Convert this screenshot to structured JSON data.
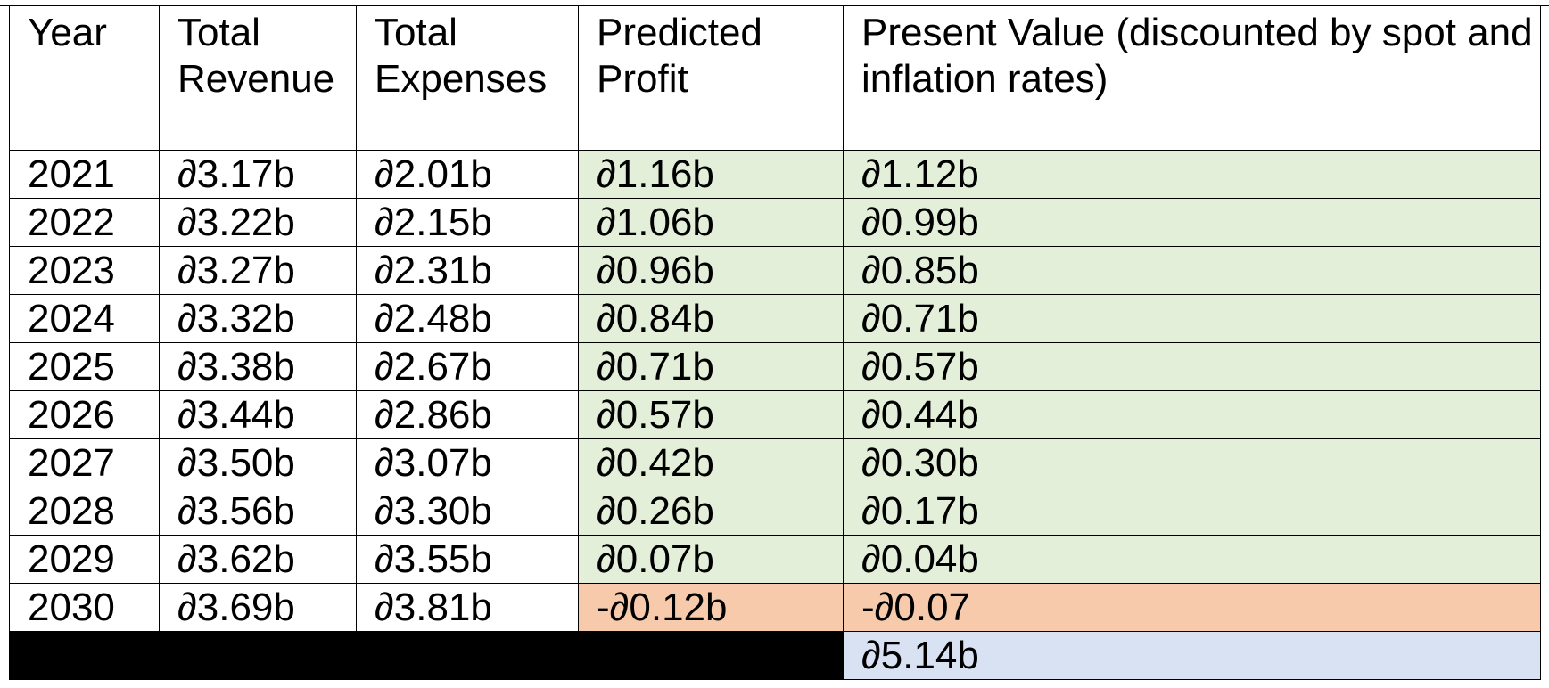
{
  "table": {
    "headers": {
      "year": "Year",
      "revenue": "Total Revenue",
      "expenses": "Total Expenses",
      "profit": "Predicted Profit",
      "present_value": "Present Value (discounted by spot and inflation rates)"
    },
    "rows": [
      {
        "year": "2021",
        "revenue": "∂3.17b",
        "expenses": "∂2.01b",
        "profit": "∂1.16b",
        "present_value": "∂1.12b"
      },
      {
        "year": "2022",
        "revenue": "∂3.22b",
        "expenses": "∂2.15b",
        "profit": "∂1.06b",
        "present_value": "∂0.99b"
      },
      {
        "year": "2023",
        "revenue": "∂3.27b",
        "expenses": "∂2.31b",
        "profit": "∂0.96b",
        "present_value": "∂0.85b"
      },
      {
        "year": "2024",
        "revenue": "∂3.32b",
        "expenses": "∂2.48b",
        "profit": "∂0.84b",
        "present_value": "∂0.71b"
      },
      {
        "year": "2025",
        "revenue": "∂3.38b",
        "expenses": "∂2.67b",
        "profit": "∂0.71b",
        "present_value": "∂0.57b"
      },
      {
        "year": "2026",
        "revenue": "∂3.44b",
        "expenses": "∂2.86b",
        "profit": "∂0.57b",
        "present_value": "∂0.44b"
      },
      {
        "year": "2027",
        "revenue": "∂3.50b",
        "expenses": "∂3.07b",
        "profit": "∂0.42b",
        "present_value": "∂0.30b"
      },
      {
        "year": "2028",
        "revenue": "∂3.56b",
        "expenses": "∂3.30b",
        "profit": "∂0.26b",
        "present_value": "∂0.17b"
      },
      {
        "year": "2029",
        "revenue": "∂3.62b",
        "expenses": "∂3.55b",
        "profit": "∂0.07b",
        "present_value": "∂0.04b"
      },
      {
        "year": "2030",
        "revenue": "∂3.69b",
        "expenses": "∂3.81b",
        "profit": "-∂0.12b",
        "present_value": "-∂0.07"
      }
    ],
    "total_present_value": "∂5.14b"
  },
  "colors": {
    "positive_fill": "#e3efd9",
    "negative_fill": "#f7caac",
    "total_fill": "#d9e2f3",
    "total_bar": "#000000"
  }
}
